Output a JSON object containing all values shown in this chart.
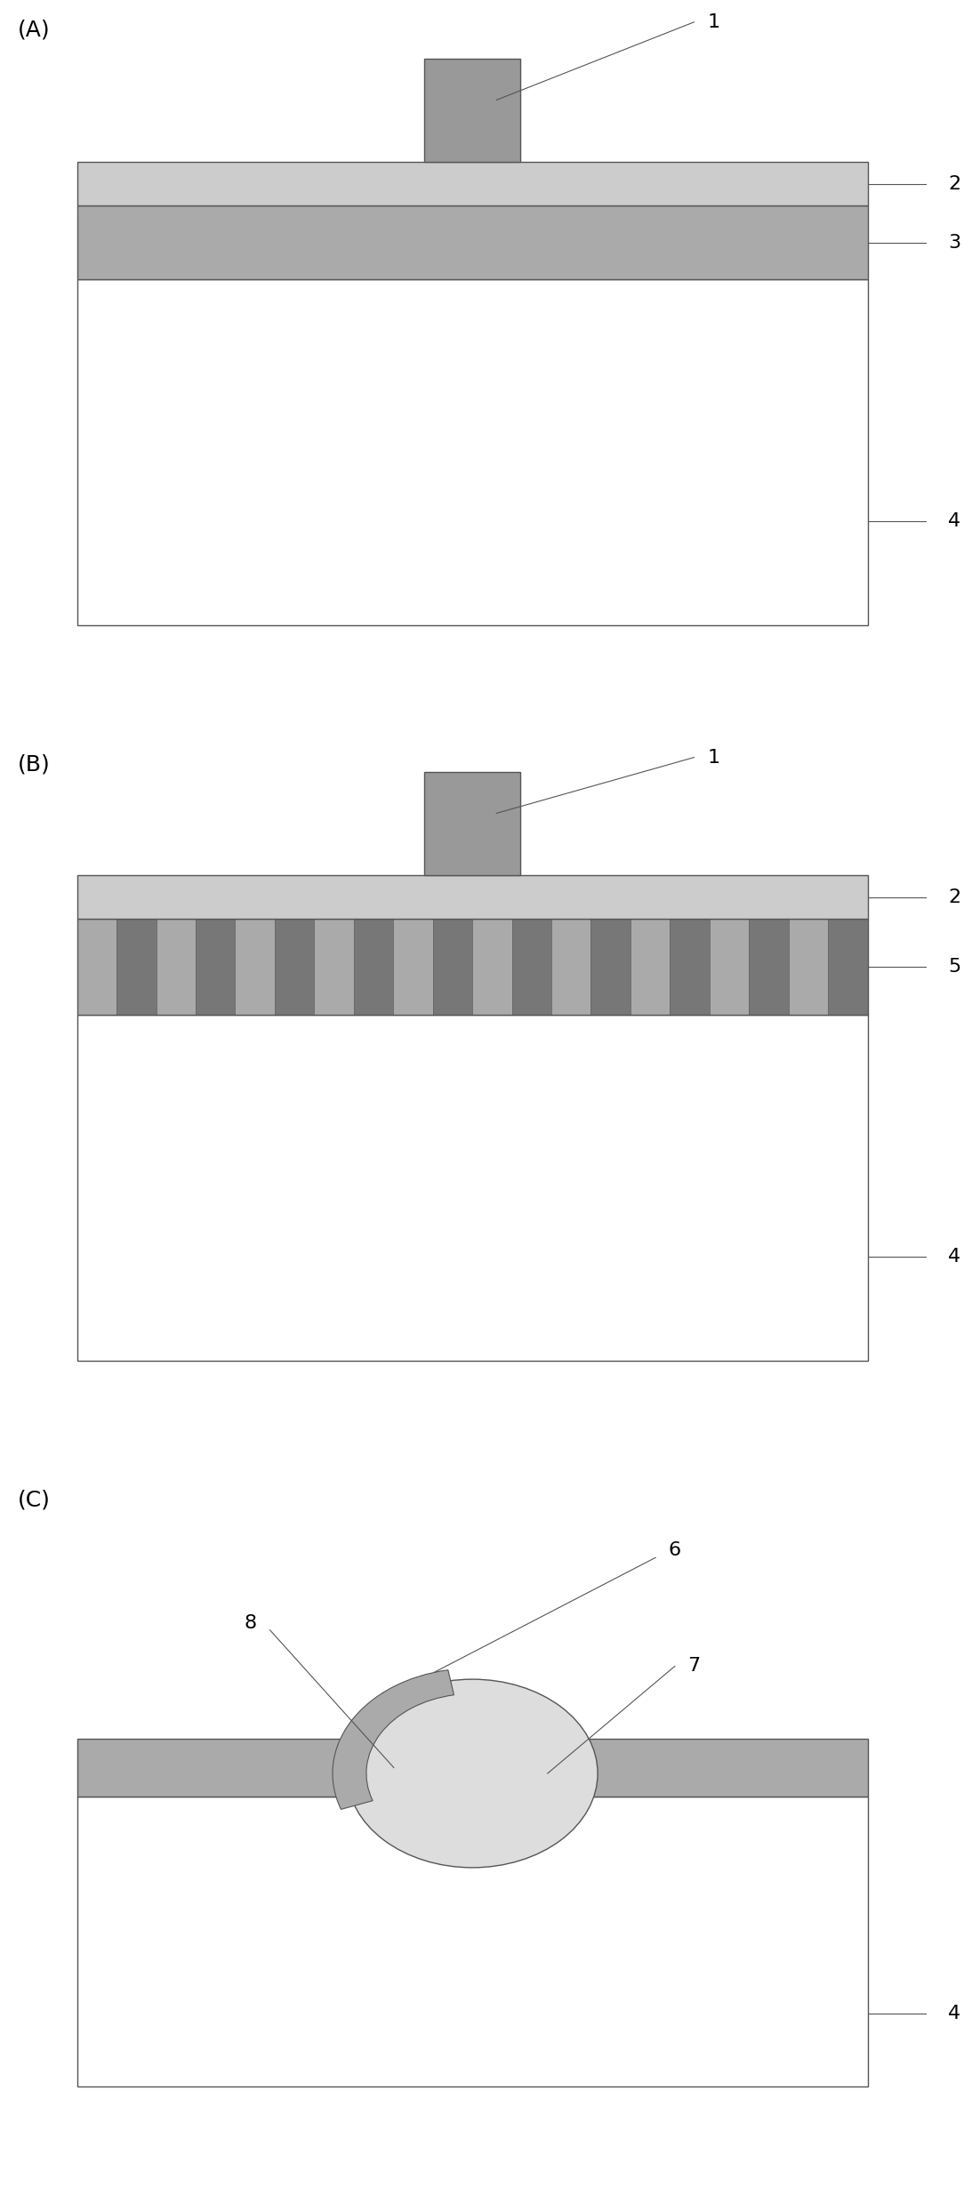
{
  "background": "#ffffff",
  "border_color": "#555555",
  "panel_label_fontsize": 18,
  "label_fontsize": 16,
  "line_color": "#555555",
  "line_width": 1.0,
  "color_layer2": "#cccccc",
  "color_layer3": "#aaaaaa",
  "color_grating": "#aaaaaa",
  "color_grating_dark": "#777777",
  "color_nanoblock": "#999999",
  "color_substrate": "#ffffff",
  "color_sphere": "#dddddd",
  "color_cap": "#aaaaaa",
  "color_film": "#aaaaaa",
  "color_white": "#ffffff",
  "color_black": "#000000",
  "panels": [
    "(A)",
    "(B)",
    "(C)"
  ]
}
